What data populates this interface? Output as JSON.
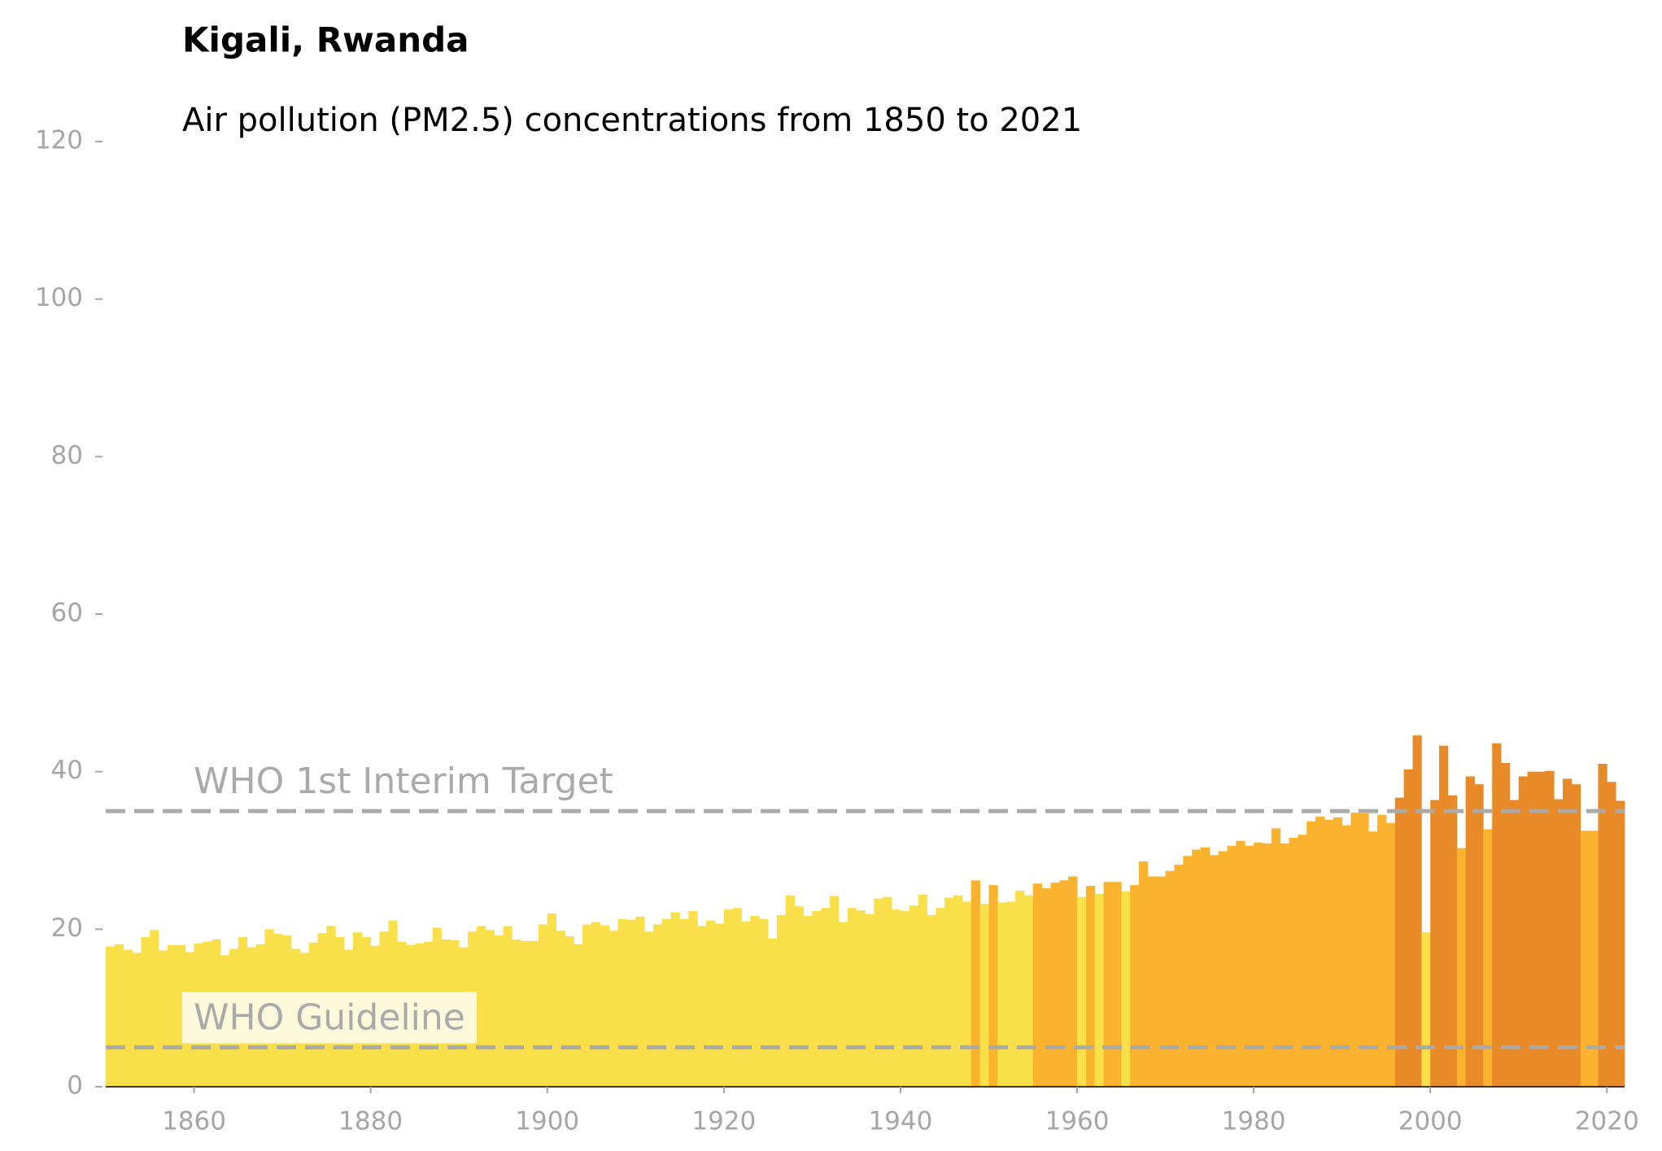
{
  "chart_data": {
    "type": "bar",
    "title": "Kigali, Rwanda",
    "subtitle": "Air pollution (PM2.5) concentrations from 1850 to 2021",
    "x": [
      1850,
      1851,
      1852,
      1853,
      1854,
      1855,
      1856,
      1857,
      1858,
      1859,
      1860,
      1861,
      1862,
      1863,
      1864,
      1865,
      1866,
      1867,
      1868,
      1869,
      1870,
      1871,
      1872,
      1873,
      1874,
      1875,
      1876,
      1877,
      1878,
      1879,
      1880,
      1881,
      1882,
      1883,
      1884,
      1885,
      1886,
      1887,
      1888,
      1889,
      1890,
      1891,
      1892,
      1893,
      1894,
      1895,
      1896,
      1897,
      1898,
      1899,
      1900,
      1901,
      1902,
      1903,
      1904,
      1905,
      1906,
      1907,
      1908,
      1909,
      1910,
      1911,
      1912,
      1913,
      1914,
      1915,
      1916,
      1917,
      1918,
      1919,
      1920,
      1921,
      1922,
      1923,
      1924,
      1925,
      1926,
      1927,
      1928,
      1929,
      1930,
      1931,
      1932,
      1933,
      1934,
      1935,
      1936,
      1937,
      1938,
      1939,
      1940,
      1941,
      1942,
      1943,
      1944,
      1945,
      1946,
      1947,
      1948,
      1949,
      1950,
      1951,
      1952,
      1953,
      1954,
      1955,
      1956,
      1957,
      1958,
      1959,
      1960,
      1961,
      1962,
      1963,
      1964,
      1965,
      1966,
      1967,
      1968,
      1969,
      1970,
      1971,
      1972,
      1973,
      1974,
      1975,
      1976,
      1977,
      1978,
      1979,
      1980,
      1981,
      1982,
      1983,
      1984,
      1985,
      1986,
      1987,
      1988,
      1989,
      1990,
      1991,
      1992,
      1993,
      1994,
      1995,
      1996,
      1997,
      1998,
      1999,
      2000,
      2001,
      2002,
      2003,
      2004,
      2005,
      2006,
      2007,
      2008,
      2009,
      2010,
      2011,
      2012,
      2013,
      2014,
      2015,
      2016,
      2017,
      2018,
      2019,
      2020,
      2021
    ],
    "values": [
      17.8,
      18.1,
      17.4,
      17.0,
      19.0,
      19.9,
      17.3,
      18.0,
      18.0,
      17.1,
      18.2,
      18.4,
      18.7,
      16.7,
      17.5,
      19.0,
      17.7,
      18.1,
      20.0,
      19.4,
      19.2,
      17.5,
      17.0,
      18.3,
      19.5,
      20.4,
      19.0,
      17.4,
      19.6,
      19.0,
      17.9,
      19.7,
      21.1,
      18.4,
      18.0,
      18.2,
      18.4,
      20.2,
      18.7,
      18.6,
      17.7,
      19.7,
      20.4,
      19.9,
      19.2,
      20.4,
      18.7,
      18.5,
      18.5,
      20.6,
      22.0,
      19.8,
      19.1,
      18.1,
      20.6,
      20.9,
      20.5,
      19.8,
      21.3,
      21.2,
      21.6,
      19.7,
      20.6,
      21.3,
      22.1,
      21.3,
      22.3,
      20.4,
      21.1,
      20.7,
      22.5,
      22.7,
      21.0,
      21.7,
      21.3,
      18.8,
      21.8,
      24.3,
      22.9,
      21.7,
      22.3,
      22.7,
      24.2,
      20.9,
      22.7,
      22.4,
      21.9,
      23.9,
      24.1,
      22.5,
      22.3,
      23.0,
      24.4,
      21.8,
      22.7,
      24.0,
      24.3,
      23.5,
      26.2,
      23.2,
      25.6,
      23.4,
      23.5,
      24.9,
      24.3,
      25.8,
      25.2,
      25.9,
      26.2,
      26.7,
      24.1,
      25.5,
      24.5,
      26.0,
      26.0,
      24.8,
      25.6,
      28.6,
      26.7,
      26.7,
      27.4,
      28.2,
      29.3,
      30.1,
      30.4,
      29.4,
      29.9,
      30.6,
      31.2,
      30.6,
      31.0,
      30.9,
      32.8,
      30.9,
      31.6,
      32.0,
      33.7,
      34.3,
      33.9,
      34.2,
      33.2,
      34.8,
      34.7,
      32.4,
      34.5,
      33.5,
      36.7,
      40.3,
      44.6,
      19.6,
      36.4,
      43.3,
      37.0,
      30.3,
      39.4,
      38.4,
      32.7,
      43.6,
      41.1,
      36.4,
      39.4,
      40.0,
      40.0,
      40.1,
      36.5,
      39.1,
      38.4,
      32.5,
      32.5,
      41.0,
      38.7,
      36.3
    ],
    "colors": [
      "#f9e04b",
      "#fbb32f",
      "#e98a28"
    ],
    "color_thresholds": [
      25,
      35
    ],
    "xlim": [
      1850,
      2022
    ],
    "xticks": [
      1860,
      1880,
      1900,
      1920,
      1940,
      1960,
      1980,
      2000,
      2020
    ],
    "ylim": [
      0,
      120
    ],
    "yticks": [
      0,
      20,
      40,
      60,
      80,
      100,
      120
    ],
    "reference_lines": [
      {
        "value": 35,
        "label": "WHO 1st Interim Target",
        "color": "#aaaaaa"
      },
      {
        "value": 5,
        "label": "WHO Guideline",
        "color": "#aaaaaa"
      }
    ]
  }
}
